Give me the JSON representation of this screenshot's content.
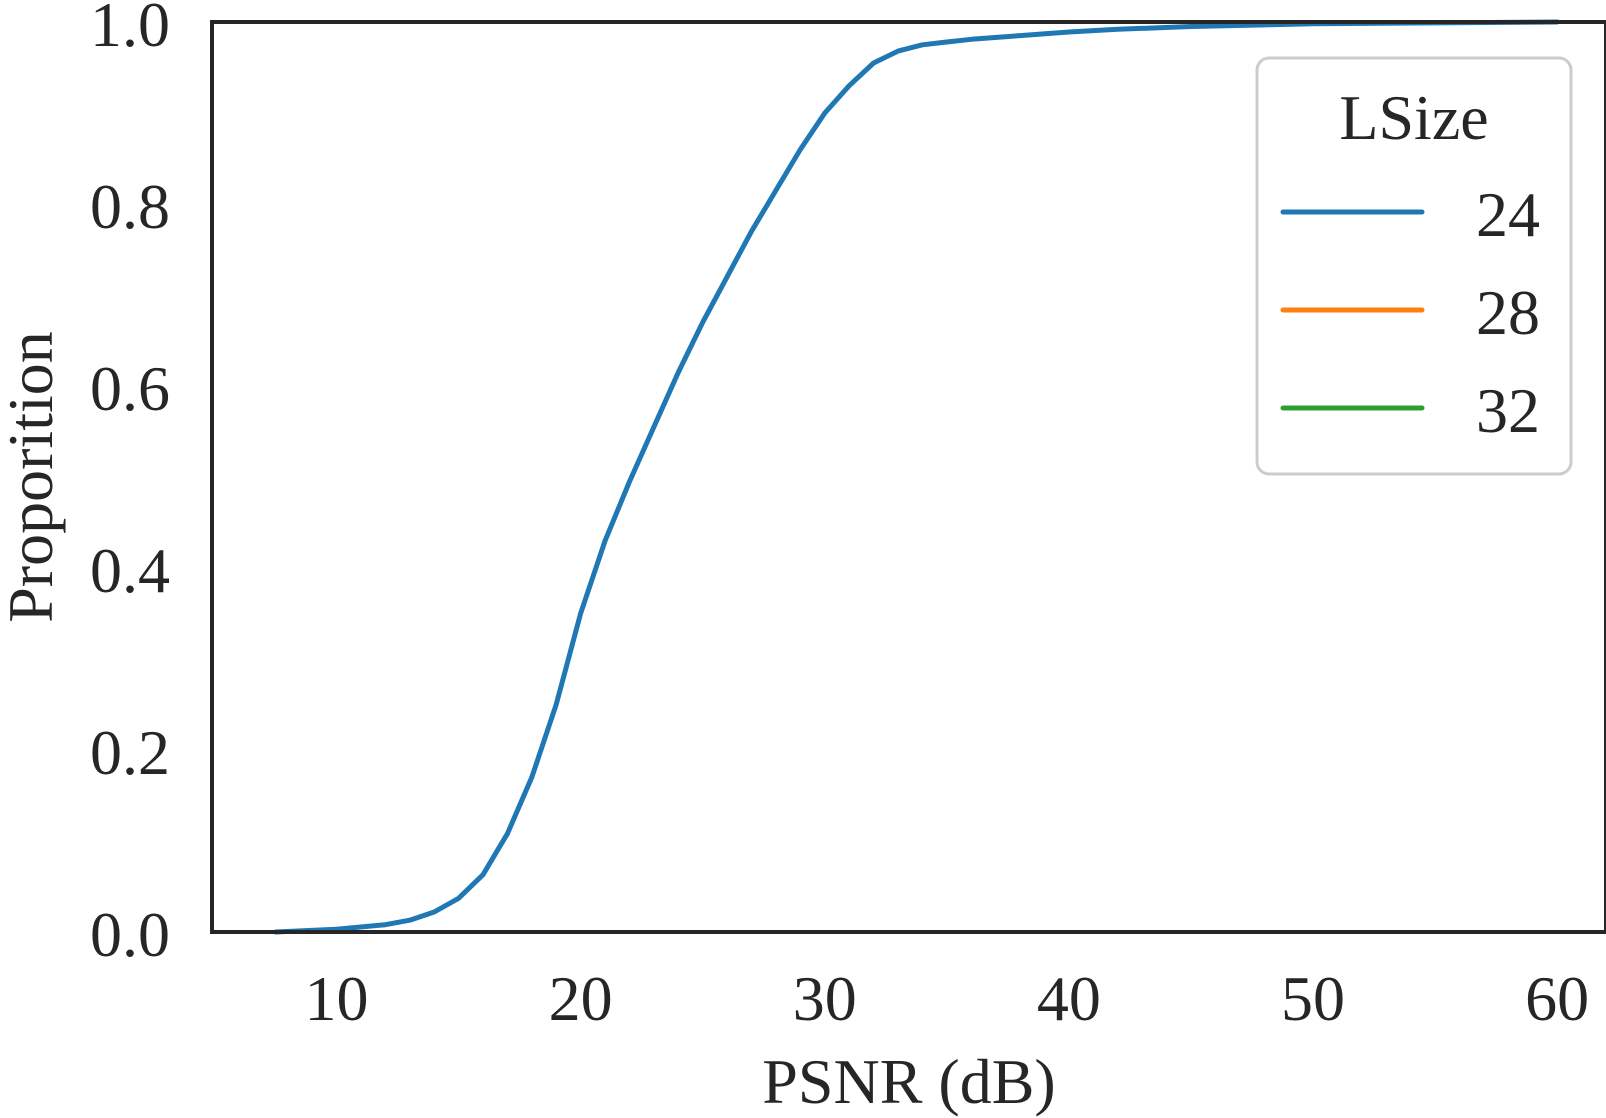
{
  "chart_data": {
    "type": "line",
    "title": "",
    "xlabel": "PSNR (dB)",
    "ylabel": "Proporition",
    "xlim": [
      4.9,
      62.0
    ],
    "ylim": [
      0.0,
      1.0
    ],
    "xticks": [
      10,
      20,
      30,
      40,
      50,
      60
    ],
    "xtick_labels": [
      "10",
      "20",
      "30",
      "40",
      "50",
      "60"
    ],
    "yticks": [
      0.0,
      0.2,
      0.4,
      0.6,
      0.8,
      1.0
    ],
    "ytick_labels": [
      "0.0",
      "0.2",
      "0.4",
      "0.6",
      "0.8",
      "1.0"
    ],
    "grid": false,
    "legend": {
      "title": "LSize",
      "placement": "top-right"
    },
    "series": [
      {
        "name": "24",
        "color": "#1f77b4",
        "x": [
          7.5,
          10.0,
          12.0,
          13.0,
          14.0,
          15.0,
          16.0,
          17.0,
          18.0,
          19.0,
          20.0,
          21.0,
          22.0,
          23.0,
          24.0,
          25.0,
          26.0,
          27.0,
          28.0,
          29.0,
          30.0,
          31.0,
          32.0,
          33.0,
          34.0,
          35.0,
          36.0,
          38.0,
          40.0,
          42.0,
          45.0,
          50.0,
          55.0,
          60.0
        ],
        "y": [
          0.0,
          0.003,
          0.008,
          0.013,
          0.022,
          0.037,
          0.063,
          0.108,
          0.17,
          0.25,
          0.35,
          0.43,
          0.495,
          0.555,
          0.615,
          0.67,
          0.72,
          0.77,
          0.815,
          0.86,
          0.9,
          0.93,
          0.955,
          0.968,
          0.975,
          0.978,
          0.981,
          0.985,
          0.989,
          0.992,
          0.995,
          0.998,
          0.999,
          1.0
        ]
      },
      {
        "name": "28",
        "color": "#ff7f0e",
        "x": [],
        "y": []
      },
      {
        "name": "32",
        "color": "#2ca02c",
        "x": [],
        "y": []
      }
    ]
  }
}
